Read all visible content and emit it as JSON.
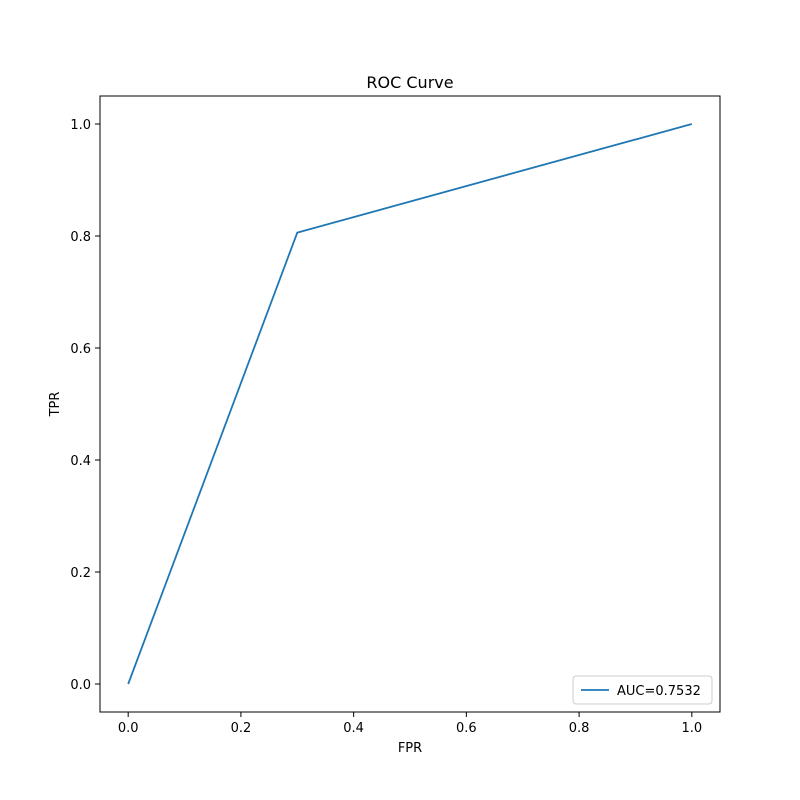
{
  "chart_data": {
    "type": "line",
    "title": "ROC Curve",
    "xlabel": "FPR",
    "ylabel": "TPR",
    "xlim": [
      -0.05,
      1.05
    ],
    "ylim": [
      -0.05,
      1.05
    ],
    "xticks": [
      0.0,
      0.2,
      0.4,
      0.6,
      0.8,
      1.0
    ],
    "yticks": [
      0.0,
      0.2,
      0.4,
      0.6,
      0.8,
      1.0
    ],
    "xtick_labels": [
      "0.0",
      "0.2",
      "0.4",
      "0.6",
      "0.8",
      "1.0"
    ],
    "ytick_labels": [
      "0.0",
      "0.2",
      "0.4",
      "0.6",
      "0.8",
      "1.0"
    ],
    "grid": false,
    "legend_position": "lower-right",
    "series": [
      {
        "name": "AUC=0.7532",
        "color": "#1f77b4",
        "x": [
          0.0,
          0.3,
          1.0
        ],
        "y": [
          0.0,
          0.806,
          1.0
        ]
      }
    ]
  }
}
